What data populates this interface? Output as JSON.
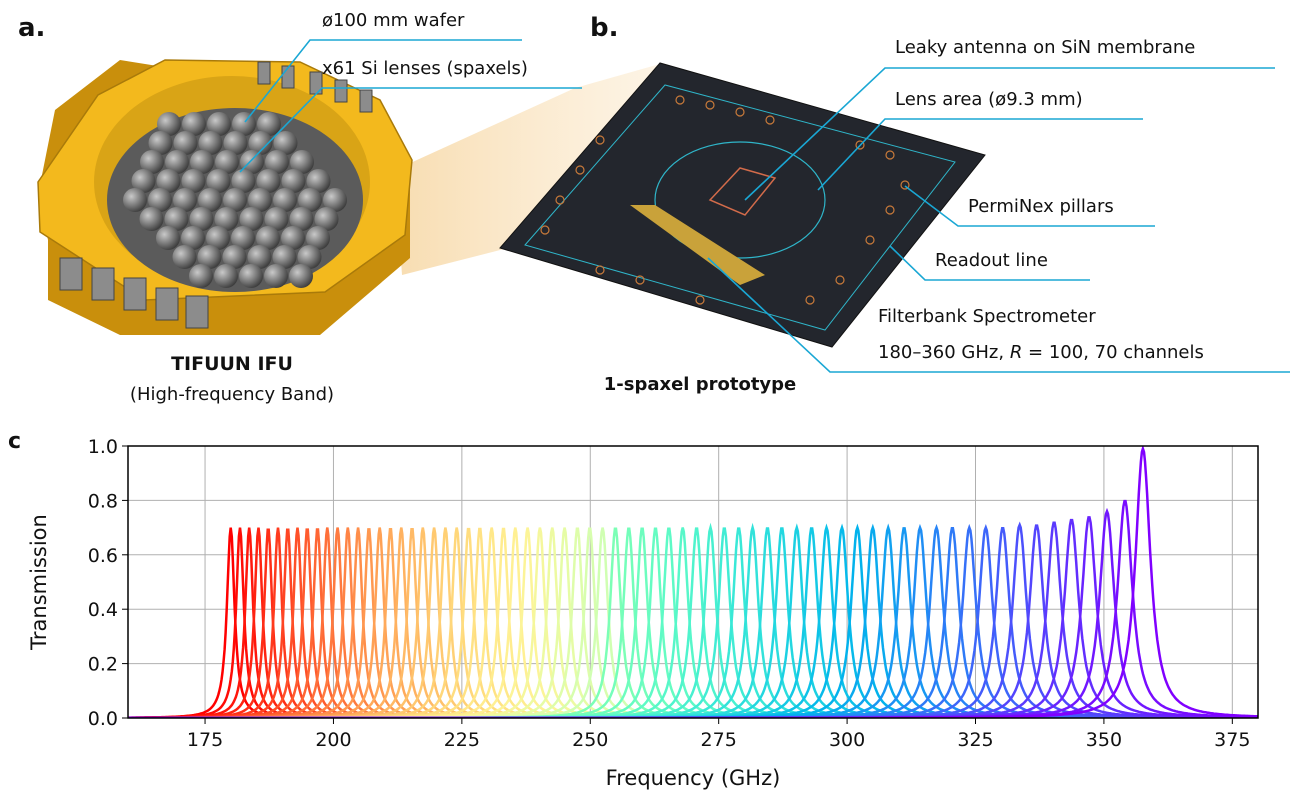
{
  "panel_a": {
    "label": "a.",
    "annotations": [
      "ø100 mm wafer",
      "x61 Si lenses (spaxels)"
    ],
    "caption_title": "TIFUUN IFU",
    "caption_subtitle": "(High-frequency Band)"
  },
  "panel_b": {
    "label": "b.",
    "annotations": [
      "Leaky antenna on SiN membrane",
      "Lens area (ø9.3 mm)",
      "PermiNex pillars",
      "Readout line",
      "Filterbank Spectrometer"
    ],
    "spec_line": [
      "180–360 GHz, ",
      "R",
      " = 100,  70 channels"
    ],
    "caption_title": "1-spaxel prototype"
  },
  "panel_c": {
    "label": "c"
  },
  "chart_data": {
    "type": "filterbank",
    "xlabel": "Frequency (GHz)",
    "ylabel": "Transmission",
    "resolution": 100,
    "colormap": "rainbow",
    "grid": true,
    "xlim": [
      160,
      380
    ],
    "xticks": [
      175,
      200,
      225,
      250,
      275,
      300,
      325,
      350,
      375
    ],
    "ylim": [
      0,
      1
    ],
    "yticks": [
      {
        "value": 0,
        "label": "0.0"
      },
      {
        "value": 0.2,
        "label": "0.2"
      },
      {
        "value": 0.4,
        "label": "0.4"
      },
      {
        "value": 0.6,
        "label": "0.6"
      },
      {
        "value": 0.8,
        "label": "0.8"
      },
      {
        "value": 1,
        "label": "1.0"
      }
    ],
    "x": [
      180.0,
      181.8,
      183.6,
      185.4,
      187.3,
      189.2,
      191.1,
      193.0,
      194.9,
      196.9,
      198.8,
      200.8,
      202.8,
      204.8,
      206.9,
      209.0,
      211.1,
      213.2,
      215.3,
      217.4,
      219.6,
      221.8,
      224.0,
      226.3,
      228.5,
      230.8,
      233.1,
      235.4,
      237.8,
      240.2,
      242.6,
      245.0,
      247.5,
      249.9,
      252.4,
      254.9,
      257.5,
      260.1,
      262.7,
      265.3,
      268.0,
      270.7,
      273.4,
      276.1,
      278.9,
      281.6,
      284.5,
      287.3,
      290.2,
      293.1,
      296.0,
      299.0,
      302.0,
      305.0,
      308.0,
      311.1,
      314.2,
      317.4,
      320.5,
      323.8,
      327.0,
      330.3,
      333.6,
      336.9,
      340.3,
      343.7,
      347.1,
      350.6,
      354.1,
      357.6
    ],
    "values": [
      0.7,
      0.7,
      0.7,
      0.7,
      0.7,
      0.7,
      0.7,
      0.7,
      0.7,
      0.7,
      0.7,
      0.7,
      0.7,
      0.7,
      0.7,
      0.7,
      0.7,
      0.7,
      0.7,
      0.7,
      0.7,
      0.7,
      0.7,
      0.7,
      0.7,
      0.7,
      0.7,
      0.7,
      0.7,
      0.7,
      0.7,
      0.7,
      0.7,
      0.7,
      0.7,
      0.7,
      0.7,
      0.7,
      0.7,
      0.7,
      0.7,
      0.7,
      0.7,
      0.7,
      0.7,
      0.7,
      0.7,
      0.7,
      0.7,
      0.7,
      0.7,
      0.7,
      0.7,
      0.7,
      0.7,
      0.7,
      0.7,
      0.7,
      0.7,
      0.7,
      0.7,
      0.7,
      0.71,
      0.71,
      0.72,
      0.73,
      0.74,
      0.76,
      0.8,
      0.99
    ]
  }
}
